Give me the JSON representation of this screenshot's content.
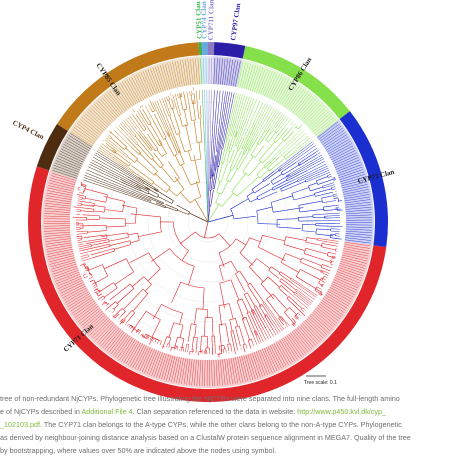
{
  "clans": [
    {
      "name": "CYP51 Clan",
      "color": "#39b54a",
      "sweep": [
        -3,
        -2
      ],
      "label_angle": -2.5
    },
    {
      "name": "CYP74 Clan",
      "color": "#6aa9e0",
      "sweep": [
        -2,
        0
      ],
      "label_angle": -1
    },
    {
      "name": "CYP711 Clan",
      "color": "#8e7cc3",
      "sweep": [
        0,
        2
      ],
      "label_angle": 1
    },
    {
      "name": "CYP97 Clan",
      "color": "#2b1fa8",
      "sweep": [
        2,
        12
      ],
      "label_angle": 8
    },
    {
      "name": "CYP86 Clan",
      "color": "#86e04c",
      "sweep": [
        12,
        52
      ],
      "label_angle": 32
    },
    {
      "name": "CYP72 Clan",
      "color": "#1b2fd0",
      "sweep": [
        52,
        98
      ],
      "label_angle": 75
    },
    {
      "name": "CYP71 Clan",
      "color": "#e0262b",
      "sweep": [
        98,
        288
      ],
      "label_angle": 228
    },
    {
      "name": "CYP4 Clan",
      "color": "#4d2c10",
      "sweep": [
        288,
        303
      ],
      "label_angle": 297
    },
    {
      "name": "CYP85 Clan",
      "color": "#c07a1a",
      "sweep": [
        303,
        357
      ],
      "label_angle": 325
    }
  ],
  "scale_label": "Tree scale: 0.1",
  "caption": {
    "l1": "tree of non-redundant NjCYPs. Phylogenetic tree illustrating the NjCYPs were separated into nine clans. The full-length amino",
    "l2a": "e of NjCYPs described in ",
    "l2link": "Additional File 4",
    "l2b": ". Clan separation referenced to the data in website: ",
    "l2url": "http://www.p450.kvl.dk/cyp_",
    "l3link": "_102103.pdf",
    "l3b": ". The CYP71 clan belongs to the A-type CYPs, while the other clans belong to the non-A-type CYPs. Phylogenetic",
    "l4": "as derived by neighbour-joining distance analysis based on a ClustalW protein sequence alignment in MEGA7. Quality of the tree",
    "l5": "by bootstrapping, where values over 50% are indicated above the nodes using symbol."
  }
}
